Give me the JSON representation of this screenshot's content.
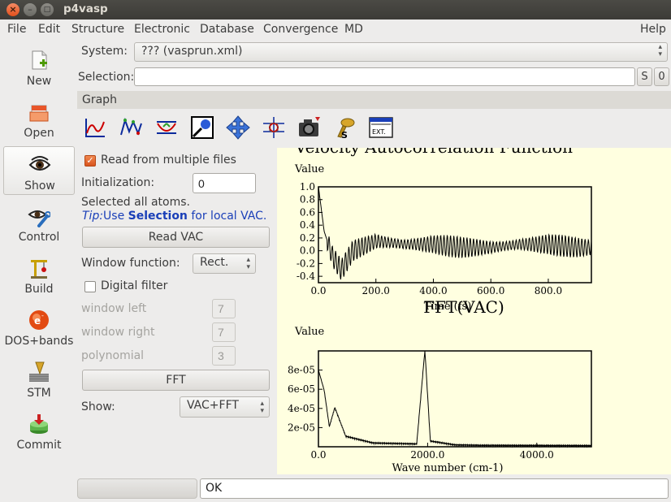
{
  "window": {
    "title": "p4vasp",
    "close_glyph": "×",
    "min_glyph": "–",
    "max_glyph": "□"
  },
  "menu": [
    "File",
    "Edit",
    "Structure",
    "Electronic",
    "Database",
    "Convergence",
    "MD",
    "Help"
  ],
  "sidebar": {
    "items": [
      {
        "label": "New",
        "icon": "new-file-icon"
      },
      {
        "label": "Open",
        "icon": "open-folder-icon"
      },
      {
        "label": "Show",
        "icon": "eye-icon",
        "active": true
      },
      {
        "label": "Control",
        "icon": "eye-wrench-icon"
      },
      {
        "label": "Build",
        "icon": "crane-icon"
      },
      {
        "label": "DOS+bands",
        "icon": "electron-icon"
      },
      {
        "label": "STM",
        "icon": "stm-tip-icon"
      },
      {
        "label": "Commit",
        "icon": "database-commit-icon"
      }
    ]
  },
  "system": {
    "label": "System:",
    "value": "??? (vasprun.xml)"
  },
  "selection": {
    "label": "Selection:",
    "value": "",
    "s_button": "S",
    "zero_button": "0"
  },
  "graph_section": {
    "label": "Graph"
  },
  "toolbar_icons": [
    "graph-line-icon",
    "graph-points-icon",
    "graph-fit-icon",
    "zoom-icon",
    "move-arrows-icon",
    "select-target-icon",
    "camera-icon",
    "export-ps-icon",
    "export-ext-icon"
  ],
  "vac_panel": {
    "read_multiple_label": "Read from multiple files",
    "read_multiple_checked": true,
    "initialization_label": "Initialization:",
    "initialization_value": "0",
    "selected_text": "Selected all atoms.",
    "tip_prefix": "Tip:",
    "tip_use": "Use ",
    "tip_selection": "Selection",
    "tip_suffix": " for local VAC.",
    "read_vac_button": "Read VAC",
    "window_function_label": "Window function:",
    "window_function_value": "Rect.",
    "digital_filter_label": "Digital filter",
    "digital_filter_checked": false,
    "window_left_label": "window left",
    "window_left_value": "7",
    "window_right_label": "window right",
    "window_right_value": "7",
    "polynomial_label": "polynomial",
    "polynomial_value": "3",
    "fft_button": "FFT",
    "show_label": "Show:",
    "show_value": "VAC+FFT"
  },
  "status": {
    "message": "OK"
  },
  "chart_data": [
    {
      "type": "line",
      "title": "Velocity Autocorrelation Function",
      "ylabel": "Value",
      "xlabel": "Time (fs)",
      "xlim": [
        0,
        950
      ],
      "ylim": [
        -0.5,
        1.0
      ],
      "xticks": [
        "0.0",
        "200.0",
        "400.0",
        "600.0",
        "800.0"
      ],
      "yticks": [
        "1.0",
        "0.8",
        "0.6",
        "0.4",
        "0.2",
        "0.0",
        "-0.2",
        "-0.4"
      ],
      "series": [
        {
          "points": [
            [
              0,
              1.0
            ],
            [
              20,
              0.3
            ],
            [
              50,
              -0.1
            ],
            [
              80,
              -0.3
            ],
            [
              120,
              0.0
            ],
            [
              200,
              0.15
            ],
            [
              300,
              0.1
            ],
            [
              400,
              0.1
            ],
            [
              500,
              0.05
            ],
            [
              600,
              0.05
            ],
            [
              700,
              0.1
            ],
            [
              800,
              0.1
            ],
            [
              900,
              0.05
            ],
            [
              950,
              0.05
            ]
          ]
        }
      ]
    },
    {
      "type": "line",
      "title": "FFT(VAC)",
      "ylabel": "Value",
      "xlabel": "Wave number (cm-1)",
      "xlim": [
        0,
        5000
      ],
      "ylim": [
        0,
        0.0001
      ],
      "xticks": [
        "0.0",
        "2000.0",
        "4000.0"
      ],
      "yticks": [
        "8e-05",
        "6e-05",
        "4e-05",
        "2e-05"
      ],
      "series": [
        {
          "points": [
            [
              0,
              8e-05
            ],
            [
              100,
              6e-05
            ],
            [
              200,
              2e-05
            ],
            [
              300,
              4e-05
            ],
            [
              500,
              1e-05
            ],
            [
              1000,
              3e-06
            ],
            [
              1800,
              2e-06
            ],
            [
              1950,
              0.0001
            ],
            [
              2050,
              5e-06
            ],
            [
              2500,
              1e-06
            ],
            [
              3000,
              5e-07
            ],
            [
              5000,
              2e-07
            ]
          ]
        }
      ]
    }
  ]
}
